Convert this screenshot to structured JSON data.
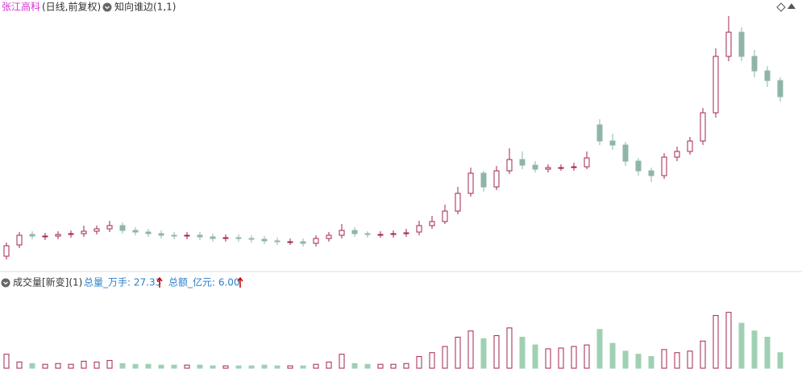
{
  "header": {
    "stock": "张江高科",
    "period": "(日线,前复权)",
    "indicator": "知向谁边(1,1)"
  },
  "volume_header": {
    "title": "成交量[新变](1)",
    "total_volume": "总量_万手: 27.33",
    "total_amount": "总额_亿元: 6.00"
  },
  "chart_data": [
    {
      "type": "candlestick",
      "up_color": "#a3244e",
      "down_color": "#8fb5a8",
      "ylim": [
        0,
        33
      ],
      "open": [
        1.2,
        2.6,
        3.9,
        3.6,
        3.7,
        3.9,
        4.0,
        4.3,
        4.6,
        5.0,
        4.4,
        4.2,
        4.0,
        3.8,
        3.7,
        3.8,
        3.6,
        3.4,
        3.5,
        3.4,
        3.3,
        3.1,
        3.0,
        3.0,
        2.8,
        3.4,
        3.8,
        4.4,
        4.0,
        3.9,
        3.9,
        4.0,
        4.2,
        5.0,
        5.5,
        6.8,
        9.0,
        11.5,
        9.8,
        11.8,
        13.2,
        12.5,
        12.0,
        12.2,
        12.2,
        12.3,
        17.5,
        15.5,
        15.0,
        13.0,
        11.8,
        11.2,
        13.5,
        14.2,
        15.5,
        19.0,
        26.0,
        29.0,
        26.0,
        24.2,
        23.0
      ],
      "high": [
        2.9,
        4.2,
        4.3,
        4.1,
        4.3,
        4.4,
        5.0,
        5.0,
        5.6,
        5.4,
        4.8,
        4.6,
        4.4,
        4.2,
        4.2,
        4.2,
        4.0,
        3.9,
        3.9,
        3.8,
        3.7,
        3.5,
        3.4,
        3.4,
        3.8,
        4.2,
        5.2,
        4.8,
        4.3,
        4.3,
        4.4,
        4.6,
        5.6,
        6.2,
        7.6,
        9.8,
        12.2,
        11.8,
        12.4,
        14.6,
        14.2,
        13.0,
        12.6,
        12.6,
        12.8,
        14.2,
        18.2,
        16.4,
        15.4,
        13.4,
        12.2,
        14.0,
        14.8,
        16.0,
        19.6,
        27.0,
        31.0,
        29.6,
        26.8,
        24.8,
        23.4
      ],
      "low": [
        0.8,
        2.2,
        3.3,
        3.2,
        3.3,
        3.5,
        3.6,
        3.9,
        4.2,
        4.0,
        3.8,
        3.6,
        3.4,
        3.3,
        3.3,
        3.2,
        3.0,
        3.0,
        3.0,
        2.9,
        2.7,
        2.6,
        2.6,
        2.4,
        2.4,
        3.0,
        3.4,
        3.6,
        3.5,
        3.5,
        3.5,
        3.6,
        3.8,
        4.6,
        5.2,
        6.4,
        8.6,
        9.2,
        9.4,
        11.4,
        12.0,
        11.6,
        11.6,
        11.8,
        11.8,
        12.0,
        15.0,
        14.4,
        12.4,
        11.2,
        10.4,
        10.8,
        13.0,
        13.8,
        15.0,
        18.4,
        25.4,
        25.4,
        23.4,
        22.2,
        20.4
      ],
      "close": [
        2.5,
        3.8,
        3.7,
        3.7,
        3.9,
        4.0,
        4.3,
        4.6,
        5.0,
        4.4,
        4.2,
        4.0,
        3.8,
        3.7,
        3.8,
        3.6,
        3.4,
        3.5,
        3.4,
        3.3,
        3.1,
        3.0,
        3.0,
        2.8,
        3.4,
        3.8,
        4.4,
        4.0,
        3.9,
        3.9,
        4.0,
        4.1,
        5.0,
        5.5,
        6.8,
        9.0,
        11.5,
        9.8,
        11.8,
        13.2,
        12.5,
        12.0,
        12.2,
        12.2,
        12.3,
        13.4,
        15.5,
        15.0,
        13.0,
        11.8,
        11.2,
        13.5,
        14.2,
        15.5,
        19.0,
        26.0,
        29.0,
        26.0,
        24.2,
        23.0,
        21.0
      ]
    },
    {
      "type": "volume",
      "ylim": [
        0,
        80
      ],
      "up_color": "#a3244e",
      "down_color": "#9fd0b4",
      "values": [
        18,
        8,
        6,
        5,
        6,
        5,
        9,
        8,
        10,
        6,
        5,
        5,
        4,
        4,
        4,
        4,
        3,
        3,
        3,
        3,
        4,
        3,
        3,
        3,
        5,
        8,
        18,
        6,
        5,
        5,
        5,
        6,
        15,
        20,
        28,
        40,
        48,
        38,
        42,
        52,
        40,
        30,
        25,
        26,
        28,
        30,
        50,
        32,
        22,
        18,
        15,
        24,
        20,
        22,
        35,
        68,
        72,
        58,
        48,
        40,
        20
      ]
    }
  ]
}
